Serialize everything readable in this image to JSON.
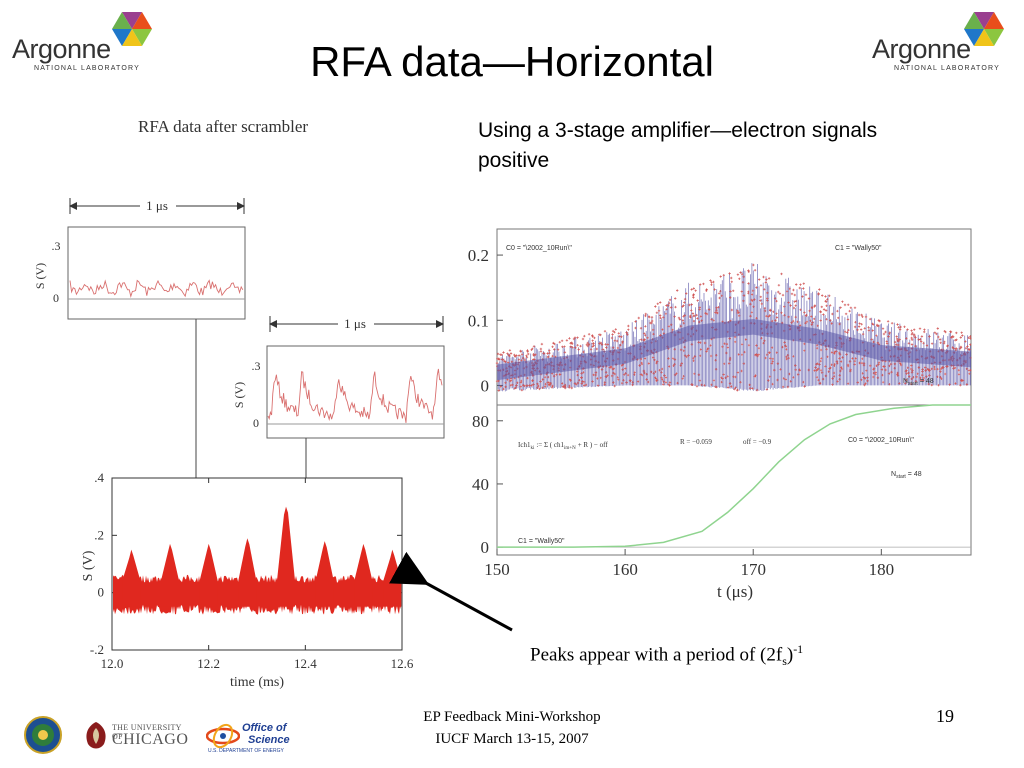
{
  "slide": {
    "title": "RFA data—Horizontal",
    "subtitle_lines": [
      "Using a 3-stage amplifier—electron signals",
      "positive"
    ],
    "left_caption": "RFA data after scrambler",
    "peaks_text": "Peaks appear with a period of (2f",
    "peaks_sub": "s",
    "peaks_close": ")",
    "peaks_sup": "-1",
    "footer_lines": [
      "EP Feedback Mini-Workshop",
      "IUCF March 13-15, 2007"
    ],
    "page_number": "19"
  },
  "logos": {
    "argonne_name": "Argonne",
    "argonne_sub": "NATIONAL LABORATORY",
    "chicago_top": "THE UNIVERSITY OF",
    "chicago_name": "CHICAGO",
    "office_line1": "Office of",
    "office_line2": "Science",
    "office_sub": "U.S. DEPARTMENT OF ENERGY"
  },
  "chart_data": [
    {
      "type": "line",
      "title": "",
      "span_label": "1 μs",
      "ylabel": "S (V)",
      "ytick_labels": [
        ".3",
        "0"
      ],
      "color": "#d9706f"
    },
    {
      "type": "line",
      "title": "",
      "span_label": "1 μs",
      "ylabel": "S (V)",
      "ytick_labels": [
        ".3",
        "0"
      ],
      "color": "#d9706f"
    },
    {
      "type": "line",
      "title": "",
      "xlabel": "time (ms)",
      "ylabel": "S (V)",
      "xlim": [
        12.0,
        12.6
      ],
      "ylim": [
        -0.2,
        0.4
      ],
      "xtick_labels": [
        "12.0",
        "12.2",
        "12.4",
        "12.6"
      ],
      "ytick_labels": [
        ".4",
        ".2",
        "0",
        "-.2"
      ],
      "peak_x": [
        12.04,
        12.12,
        12.2,
        12.28,
        12.36,
        12.44,
        12.52,
        12.58
      ],
      "peak_y": [
        0.15,
        0.17,
        0.17,
        0.19,
        0.3,
        0.18,
        0.17,
        0.15
      ],
      "color": "#e0281f"
    },
    {
      "type": "scatter",
      "xlim": [
        150,
        187
      ],
      "ylim": [
        -0.03,
        0.24
      ],
      "ytick_labels": [
        "0.2",
        "0.1",
        "0"
      ],
      "annotations": [
        "C0 = \"\\2002_10Run\\\"",
        "C1 = \"Wally50\""
      ],
      "nstart": "N",
      "nstart_sub": "start",
      "nstart_val": "= 48",
      "envelope": {
        "x": [
          150,
          160,
          165,
          170,
          175,
          180,
          187
        ],
        "upper": [
          0.05,
          0.09,
          0.16,
          0.19,
          0.15,
          0.1,
          0.08
        ],
        "lower": [
          -0.01,
          0.0,
          0.0,
          -0.01,
          0.0,
          0.0,
          0.0
        ]
      },
      "colors": {
        "a": "#5a55a8",
        "b": "#d15656"
      }
    },
    {
      "type": "line",
      "xlabel": "t (μs)",
      "xlim": [
        150,
        187
      ],
      "ylim": [
        -5,
        90
      ],
      "xtick_labels": [
        "150",
        "160",
        "170",
        "180"
      ],
      "ytick_labels": [
        "80",
        "40",
        "0"
      ],
      "x": [
        150,
        156,
        160,
        163,
        166,
        168,
        170,
        172,
        174,
        176,
        178,
        181,
        184,
        187
      ],
      "y": [
        0,
        0,
        0.5,
        3,
        10,
        22,
        37,
        54,
        68,
        78,
        84,
        88,
        90,
        90
      ],
      "formula": "Ich1",
      "formula_sub": "ki",
      "formula_mid": ":= Σ ( ch1",
      "formula_sub2": "im+N",
      "formula_end": "+ R ) − off",
      "r_label": "R = −0.059",
      "off_label": "off = −0.9",
      "annotations": [
        "C0 = \"\\2002_10Run\\\"",
        "C1 = \"Wally50\""
      ],
      "nstart": "N",
      "nstart_sub": "start",
      "nstart_val": "= 48",
      "color": "#8fd48f"
    }
  ]
}
